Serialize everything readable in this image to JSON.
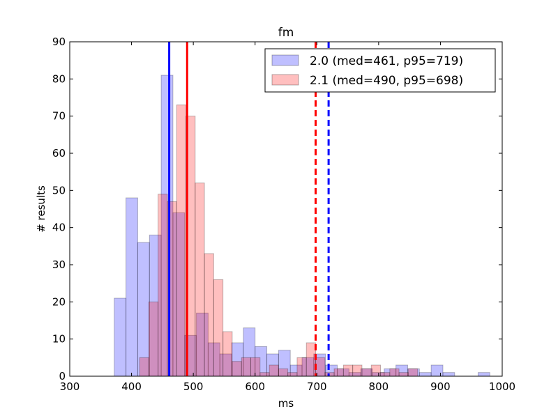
{
  "chart_data": {
    "type": "histogram",
    "title": "fm",
    "xlabel": "ms",
    "ylabel": "# results",
    "xlim": [
      300,
      1000
    ],
    "ylim": [
      0,
      90
    ],
    "xticks": [
      300,
      400,
      500,
      600,
      700,
      800,
      900,
      1000
    ],
    "yticks": [
      0,
      10,
      20,
      30,
      40,
      50,
      60,
      70,
      80,
      90
    ],
    "legend_position": "upper-right",
    "series": [
      {
        "name": "2.0 (med=461, p95=719)",
        "color": "#0000ff",
        "bin_width": 19,
        "bins": [
          {
            "x0": 372,
            "count": 21
          },
          {
            "x0": 391,
            "count": 48
          },
          {
            "x0": 410,
            "count": 36
          },
          {
            "x0": 429,
            "count": 38
          },
          {
            "x0": 448,
            "count": 81
          },
          {
            "x0": 467,
            "count": 44
          },
          {
            "x0": 486,
            "count": 11
          },
          {
            "x0": 505,
            "count": 17
          },
          {
            "x0": 524,
            "count": 9
          },
          {
            "x0": 543,
            "count": 6
          },
          {
            "x0": 562,
            "count": 9
          },
          {
            "x0": 581,
            "count": 13
          },
          {
            "x0": 600,
            "count": 8
          },
          {
            "x0": 619,
            "count": 6
          },
          {
            "x0": 638,
            "count": 7
          },
          {
            "x0": 657,
            "count": 3
          },
          {
            "x0": 676,
            "count": 5
          },
          {
            "x0": 695,
            "count": 6
          },
          {
            "x0": 714,
            "count": 3
          },
          {
            "x0": 733,
            "count": 2
          },
          {
            "x0": 752,
            "count": 1
          },
          {
            "x0": 771,
            "count": 2
          },
          {
            "x0": 790,
            "count": 1
          },
          {
            "x0": 809,
            "count": 2
          },
          {
            "x0": 828,
            "count": 3
          },
          {
            "x0": 847,
            "count": 2
          },
          {
            "x0": 866,
            "count": 1
          },
          {
            "x0": 885,
            "count": 3
          },
          {
            "x0": 904,
            "count": 1
          },
          {
            "x0": 961,
            "count": 1
          }
        ],
        "median": 461,
        "p95": 719
      },
      {
        "name": "2.1 (med=490, p95=698)",
        "color": "#ff0000",
        "bin_width": 15,
        "bins": [
          {
            "x0": 413,
            "count": 5
          },
          {
            "x0": 428,
            "count": 20
          },
          {
            "x0": 443,
            "count": 49
          },
          {
            "x0": 458,
            "count": 47
          },
          {
            "x0": 473,
            "count": 73
          },
          {
            "x0": 488,
            "count": 70
          },
          {
            "x0": 503,
            "count": 52
          },
          {
            "x0": 518,
            "count": 33
          },
          {
            "x0": 533,
            "count": 26
          },
          {
            "x0": 548,
            "count": 12
          },
          {
            "x0": 563,
            "count": 4
          },
          {
            "x0": 578,
            "count": 5
          },
          {
            "x0": 593,
            "count": 5
          },
          {
            "x0": 608,
            "count": 1
          },
          {
            "x0": 623,
            "count": 3
          },
          {
            "x0": 638,
            "count": 2
          },
          {
            "x0": 653,
            "count": 1
          },
          {
            "x0": 668,
            "count": 5
          },
          {
            "x0": 683,
            "count": 9
          },
          {
            "x0": 698,
            "count": 5
          },
          {
            "x0": 713,
            "count": 1
          },
          {
            "x0": 728,
            "count": 2
          },
          {
            "x0": 743,
            "count": 3
          },
          {
            "x0": 758,
            "count": 3
          },
          {
            "x0": 773,
            "count": 2
          },
          {
            "x0": 788,
            "count": 3
          },
          {
            "x0": 803,
            "count": 1
          },
          {
            "x0": 818,
            "count": 2
          },
          {
            "x0": 833,
            "count": 1
          },
          {
            "x0": 848,
            "count": 2
          }
        ],
        "median": 490,
        "p95": 698
      }
    ]
  }
}
